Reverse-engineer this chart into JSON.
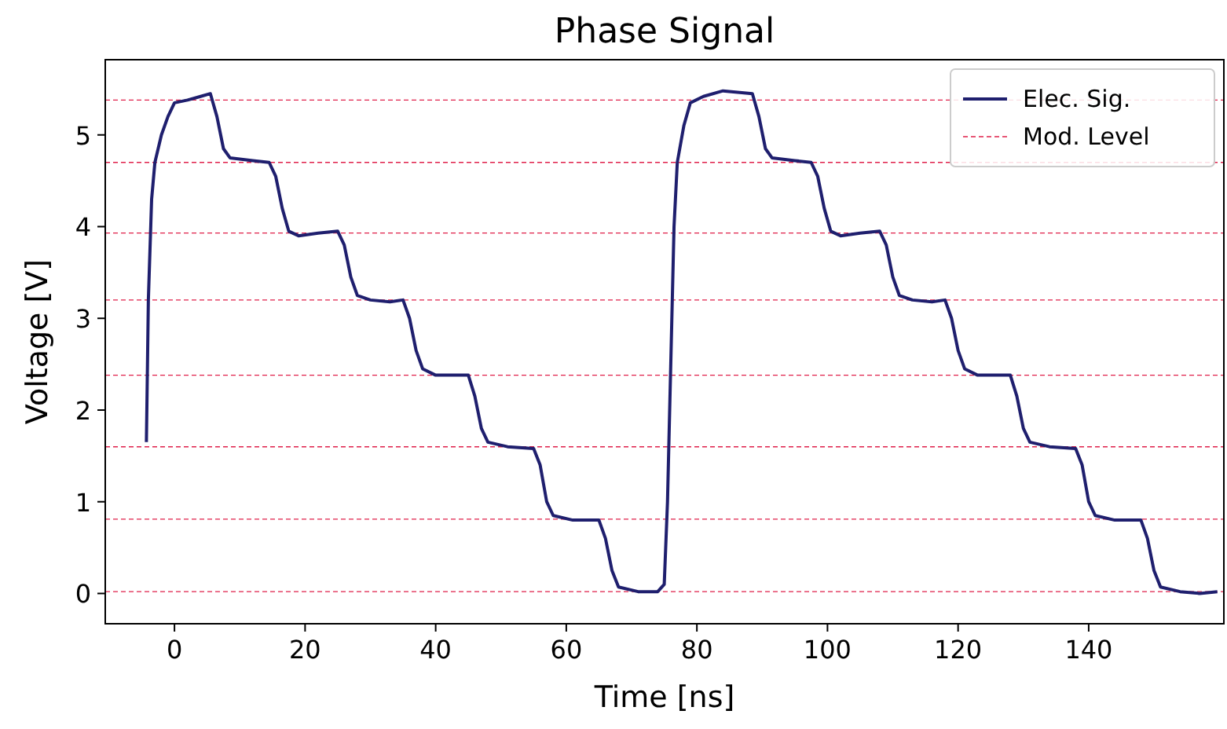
{
  "chart_data": {
    "type": "line",
    "title": "Phase Signal",
    "xlabel": "Time [ns]",
    "ylabel": "Voltage [V]",
    "xlim": [
      -10.6,
      160.7
    ],
    "ylim": [
      -0.33,
      5.82
    ],
    "xticks": [
      0,
      20,
      40,
      60,
      80,
      100,
      120,
      140
    ],
    "yticks": [
      0,
      1,
      2,
      3,
      4,
      5
    ],
    "legend": "top right",
    "grid": false,
    "series": [
      {
        "name": "Elec. Sig.",
        "color": "#1f1f6e",
        "line_style": "solid",
        "x": [
          -4.3,
          -4,
          -3.5,
          -3,
          -2,
          -1,
          0,
          2,
          4,
          5.5,
          6.5,
          7.5,
          8.5,
          12,
          14.5,
          15.5,
          16.5,
          17.5,
          19,
          22,
          25,
          26,
          27,
          28,
          30,
          33,
          35,
          36,
          37,
          38,
          40,
          43,
          45,
          46,
          47,
          48,
          51,
          55,
          56,
          57,
          58,
          61,
          65,
          66,
          67,
          68,
          71,
          74,
          75,
          75.5,
          76,
          76.5,
          77,
          78,
          79,
          81,
          84,
          88.5,
          89.5,
          90.5,
          91.5,
          95,
          97.5,
          98.5,
          99.5,
          100.5,
          102,
          105,
          108,
          109,
          110,
          111,
          113,
          116,
          118,
          119,
          120,
          121,
          123,
          126,
          128,
          129,
          130,
          131,
          134,
          138,
          139,
          140,
          141,
          144,
          148,
          149,
          150,
          151,
          154,
          157,
          159.7
        ],
        "values": [
          1.65,
          3.2,
          4.3,
          4.7,
          5.0,
          5.2,
          5.35,
          5.38,
          5.42,
          5.45,
          5.2,
          4.85,
          4.75,
          4.72,
          4.7,
          4.55,
          4.2,
          3.95,
          3.9,
          3.93,
          3.95,
          3.8,
          3.45,
          3.25,
          3.2,
          3.18,
          3.2,
          3.0,
          2.65,
          2.45,
          2.38,
          2.38,
          2.38,
          2.15,
          1.8,
          1.65,
          1.6,
          1.58,
          1.4,
          1.0,
          0.85,
          0.8,
          0.8,
          0.6,
          0.25,
          0.07,
          0.02,
          0.02,
          0.1,
          1.0,
          2.5,
          4.0,
          4.7,
          5.1,
          5.35,
          5.42,
          5.48,
          5.45,
          5.2,
          4.85,
          4.75,
          4.72,
          4.7,
          4.55,
          4.2,
          3.95,
          3.9,
          3.93,
          3.95,
          3.8,
          3.45,
          3.25,
          3.2,
          3.18,
          3.2,
          3.0,
          2.65,
          2.45,
          2.38,
          2.38,
          2.38,
          2.15,
          1.8,
          1.65,
          1.6,
          1.58,
          1.4,
          1.0,
          0.85,
          0.8,
          0.8,
          0.6,
          0.25,
          0.07,
          0.02,
          0.0,
          0.02
        ]
      },
      {
        "name": "Mod. Level",
        "color": "#e0204a",
        "line_style": "dashed"
      }
    ],
    "ref_lines": [
      {
        "axis": "y",
        "value": 0.02,
        "color": "#e0204a",
        "line_style": "dashed"
      },
      {
        "axis": "y",
        "value": 0.81,
        "color": "#e0204a",
        "line_style": "dashed"
      },
      {
        "axis": "y",
        "value": 1.6,
        "color": "#e0204a",
        "line_style": "dashed"
      },
      {
        "axis": "y",
        "value": 2.38,
        "color": "#e0204a",
        "line_style": "dashed"
      },
      {
        "axis": "y",
        "value": 3.2,
        "color": "#e0204a",
        "line_style": "dashed"
      },
      {
        "axis": "y",
        "value": 3.93,
        "color": "#e0204a",
        "line_style": "dashed"
      },
      {
        "axis": "y",
        "value": 4.7,
        "color": "#e0204a",
        "line_style": "dashed"
      },
      {
        "axis": "y",
        "value": 5.38,
        "color": "#e0204a",
        "line_style": "dashed"
      }
    ]
  }
}
